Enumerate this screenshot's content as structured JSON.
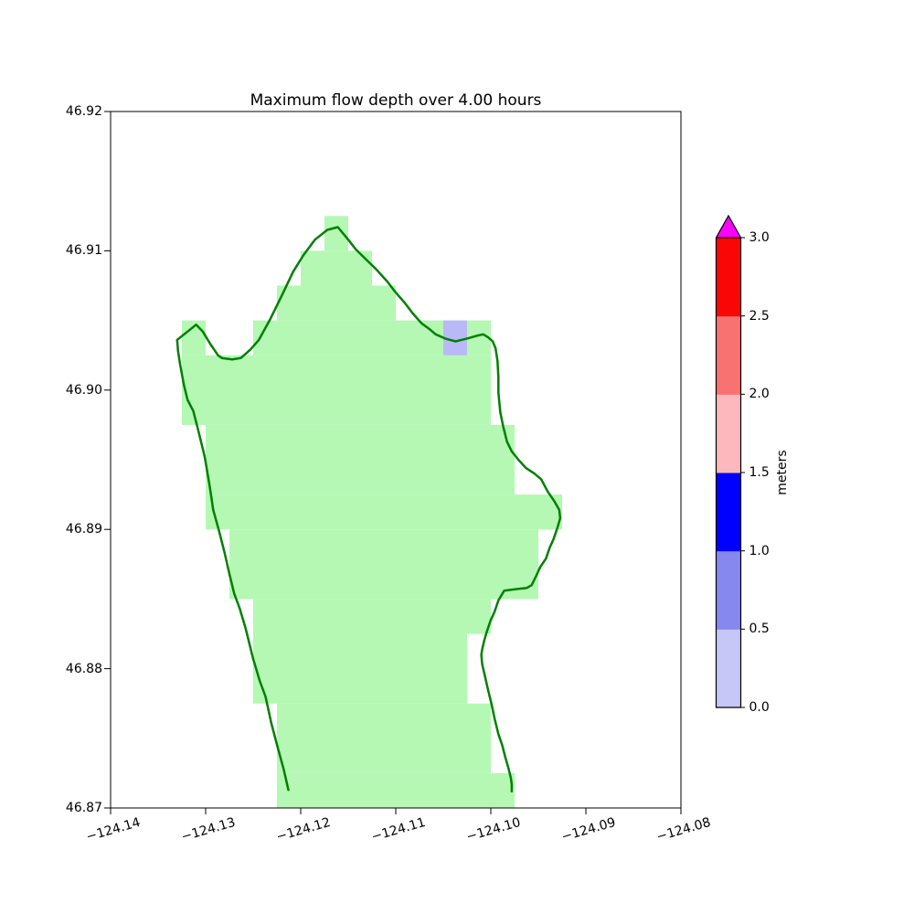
{
  "figure": {
    "background_color": "#ffffff"
  },
  "chart_data": {
    "type": "heatmap",
    "title": "Maximum flow depth over 4.00 hours",
    "xlabel": "",
    "ylabel": "",
    "xlim": [
      -124.14,
      -124.08
    ],
    "ylim": [
      46.87,
      46.92
    ],
    "grid": false,
    "x_tick_values": [
      -124.14,
      -124.13,
      -124.12,
      -124.11,
      -124.1,
      -124.09,
      -124.08
    ],
    "x_tick_labels": [
      "−124.14",
      "−124.13",
      "−124.12",
      "−124.11",
      "−124.10",
      "−124.09",
      "−124.08"
    ],
    "y_tick_values": [
      46.92,
      46.91,
      46.9,
      46.89,
      46.88,
      46.87
    ],
    "y_tick_labels": [
      "46.92",
      "46.91",
      "46.90",
      "46.89",
      "46.88",
      "46.87"
    ],
    "cell_size_deg": 0.0025,
    "land_region": {
      "color": "#b4f8b4",
      "note": "computational grid region shown in light green; rows listed top-to-bottom as lat bands with lon spans",
      "rows": [
        {
          "lat_top": 46.9125,
          "lat_bottom": 46.91,
          "lon_spans": [
            [
              -124.1175,
              -124.115
            ]
          ]
        },
        {
          "lat_top": 46.91,
          "lat_bottom": 46.9075,
          "lon_spans": [
            [
              -124.12,
              -124.1125
            ]
          ]
        },
        {
          "lat_top": 46.9075,
          "lat_bottom": 46.905,
          "lon_spans": [
            [
              -124.1225,
              -124.11
            ]
          ]
        },
        {
          "lat_top": 46.905,
          "lat_bottom": 46.9025,
          "lon_spans": [
            [
              -124.1325,
              -124.13
            ],
            [
              -124.125,
              -124.1
            ]
          ]
        },
        {
          "lat_top": 46.9025,
          "lat_bottom": 46.8975,
          "lon_spans": [
            [
              -124.1325,
              -124.1
            ]
          ]
        },
        {
          "lat_top": 46.8975,
          "lat_bottom": 46.8925,
          "lon_spans": [
            [
              -124.13,
              -124.0975
            ]
          ]
        },
        {
          "lat_top": 46.8925,
          "lat_bottom": 46.89,
          "lon_spans": [
            [
              -124.13,
              -124.0925
            ]
          ]
        },
        {
          "lat_top": 46.89,
          "lat_bottom": 46.885,
          "lon_spans": [
            [
              -124.1275,
              -124.095
            ]
          ]
        },
        {
          "lat_top": 46.885,
          "lat_bottom": 46.8825,
          "lon_spans": [
            [
              -124.125,
              -124.1
            ]
          ]
        },
        {
          "lat_top": 46.8825,
          "lat_bottom": 46.8775,
          "lon_spans": [
            [
              -124.125,
              -124.1025
            ]
          ]
        },
        {
          "lat_top": 46.8775,
          "lat_bottom": 46.8725,
          "lon_spans": [
            [
              -124.1225,
              -124.1
            ]
          ]
        },
        {
          "lat_top": 46.8725,
          "lat_bottom": 46.87,
          "lon_spans": [
            [
              -124.1225,
              -124.0975
            ]
          ]
        }
      ]
    },
    "flooded_cells": [
      {
        "lon_west": -124.105,
        "lon_east": -124.1025,
        "lat_south": 46.9025,
        "lat_north": 46.905,
        "depth_bin": "0.0-0.5",
        "color": "#b9b9f7"
      }
    ],
    "coastline": {
      "color": "#008000",
      "line_width": 2.5,
      "points": [
        [
          -124.1213,
          46.8713
        ],
        [
          -124.1218,
          46.8728
        ],
        [
          -124.1224,
          46.8743
        ],
        [
          -124.1231,
          46.8761
        ],
        [
          -124.1237,
          46.878
        ],
        [
          -124.1243,
          46.8791
        ],
        [
          -124.125,
          46.8807
        ],
        [
          -124.1258,
          46.8829
        ],
        [
          -124.1264,
          46.8843
        ],
        [
          -124.127,
          46.8854
        ],
        [
          -124.1275,
          46.8868
        ],
        [
          -124.128,
          46.8883
        ],
        [
          -124.1286,
          46.8899
        ],
        [
          -124.1292,
          46.8914
        ],
        [
          -124.1296,
          46.8932
        ],
        [
          -124.1301,
          46.8952
        ],
        [
          -124.1307,
          46.8969
        ],
        [
          -124.1313,
          46.8985
        ],
        [
          -124.1319,
          46.8993
        ],
        [
          -124.1323,
          46.9004
        ],
        [
          -124.1327,
          46.9019
        ],
        [
          -124.1329,
          46.9028
        ],
        [
          -124.133,
          46.9036
        ],
        [
          -124.1319,
          46.9042
        ],
        [
          -124.131,
          46.9047
        ],
        [
          -124.1303,
          46.9042
        ],
        [
          -124.1295,
          46.9033
        ],
        [
          -124.1287,
          46.9025
        ],
        [
          -124.1283,
          46.9023
        ],
        [
          -124.1272,
          46.9022
        ],
        [
          -124.1263,
          46.9023
        ],
        [
          -124.1253,
          46.9029
        ],
        [
          -124.1244,
          46.9036
        ],
        [
          -124.1232,
          46.9051
        ],
        [
          -124.1219,
          46.9069
        ],
        [
          -124.1208,
          46.9085
        ],
        [
          -124.1197,
          46.9097
        ],
        [
          -124.1185,
          46.9108
        ],
        [
          -124.1172,
          46.9115
        ],
        [
          -124.1161,
          46.9117
        ],
        [
          -124.115,
          46.9108
        ],
        [
          -124.1142,
          46.9101
        ],
        [
          -124.113,
          46.9093
        ],
        [
          -124.1121,
          46.9087
        ],
        [
          -124.1109,
          46.9078
        ],
        [
          -124.11,
          46.907
        ],
        [
          -124.1091,
          46.9063
        ],
        [
          -124.1082,
          46.9055
        ],
        [
          -124.1073,
          46.9048
        ],
        [
          -124.1065,
          46.9044
        ],
        [
          -124.1058,
          46.904
        ],
        [
          -124.1048,
          46.9037
        ],
        [
          -124.1037,
          46.9035
        ],
        [
          -124.1025,
          46.9037
        ],
        [
          -124.1015,
          46.9039
        ],
        [
          -124.1008,
          46.904
        ],
        [
          -124.1003,
          46.9038
        ],
        [
          -124.0998,
          46.9035
        ],
        [
          -124.0995,
          46.903
        ],
        [
          -124.0993,
          46.9021
        ],
        [
          -124.0992,
          46.9009
        ],
        [
          -124.0992,
          46.8998
        ],
        [
          -124.099,
          46.8984
        ],
        [
          -124.0987,
          46.8974
        ],
        [
          -124.0983,
          46.8963
        ],
        [
          -124.0978,
          46.8956
        ],
        [
          -124.0971,
          46.895
        ],
        [
          -124.0963,
          46.8944
        ],
        [
          -124.0954,
          46.894
        ],
        [
          -124.0947,
          46.8936
        ],
        [
          -124.094,
          46.8927
        ],
        [
          -124.0933,
          46.892
        ],
        [
          -124.0928,
          46.8914
        ],
        [
          -124.0927,
          46.8908
        ],
        [
          -124.093,
          46.8901
        ],
        [
          -124.0934,
          46.8893
        ],
        [
          -124.0938,
          46.8887
        ],
        [
          -124.0942,
          46.8879
        ],
        [
          -124.0948,
          46.8873
        ],
        [
          -124.0952,
          46.8867
        ],
        [
          -124.0957,
          46.886
        ],
        [
          -124.0962,
          46.8858
        ],
        [
          -124.0975,
          46.8857
        ],
        [
          -124.0986,
          46.8856
        ],
        [
          -124.0992,
          46.8849
        ],
        [
          -124.0996,
          46.8841
        ],
        [
          -124.1,
          46.8835
        ],
        [
          -124.1004,
          46.8827
        ],
        [
          -124.1007,
          46.882
        ],
        [
          -124.1009,
          46.8814
        ],
        [
          -124.101,
          46.881
        ],
        [
          -124.1009,
          46.8803
        ],
        [
          -124.1006,
          46.8794
        ],
        [
          -124.1003,
          46.8785
        ],
        [
          -124.0999,
          46.8774
        ],
        [
          -124.0996,
          46.8764
        ],
        [
          -124.0992,
          46.8753
        ],
        [
          -124.0988,
          46.8745
        ],
        [
          -124.0985,
          46.8737
        ],
        [
          -124.0982,
          46.873
        ],
        [
          -124.0979,
          46.8722
        ],
        [
          -124.0978,
          46.8717
        ],
        [
          -124.0978,
          46.8712
        ]
      ]
    },
    "colorbar": {
      "label": "meters",
      "orientation": "vertical",
      "extend": "max",
      "boundaries": [
        0.0,
        0.5,
        1.0,
        1.5,
        2.0,
        2.5,
        3.0
      ],
      "tick_labels": [
        "0.0",
        "0.5",
        "1.0",
        "1.5",
        "2.0",
        "2.5",
        "3.0"
      ],
      "segment_colors": [
        "#c6c6f7",
        "#8787f0",
        "#0000ff",
        "#fcb8bc",
        "#f97272",
        "#fb0606"
      ],
      "over_color": "#ff00ff",
      "outline_color": "#000000"
    },
    "axes_color": "#000000"
  }
}
